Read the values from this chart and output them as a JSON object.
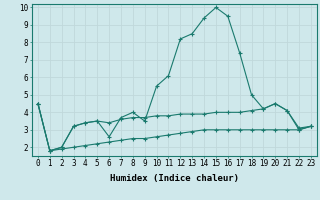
{
  "xlabel": "Humidex (Indice chaleur)",
  "bg_color": "#cfe8eb",
  "grid_color": "#c0d8db",
  "line_color": "#1a7a6e",
  "xlim": [
    -0.5,
    23.5
  ],
  "ylim": [
    1.5,
    10.2
  ],
  "yticks": [
    2,
    3,
    4,
    5,
    6,
    7,
    8,
    9,
    10
  ],
  "xticks": [
    0,
    1,
    2,
    3,
    4,
    5,
    6,
    7,
    8,
    9,
    10,
    11,
    12,
    13,
    14,
    15,
    16,
    17,
    18,
    19,
    20,
    21,
    22,
    23
  ],
  "series1_x": [
    0,
    1,
    2,
    3,
    4,
    5,
    6,
    7,
    8,
    9,
    10,
    11,
    12,
    13,
    14,
    15,
    16,
    17,
    18,
    19,
    20,
    21,
    22,
    23
  ],
  "series1_y": [
    4.5,
    1.8,
    2.0,
    3.2,
    3.4,
    3.5,
    2.6,
    3.7,
    4.0,
    3.5,
    5.5,
    6.1,
    8.2,
    8.5,
    9.4,
    10.0,
    9.5,
    7.4,
    5.0,
    4.2,
    4.5,
    4.1,
    3.0,
    3.2
  ],
  "series2_x": [
    0,
    1,
    2,
    3,
    4,
    5,
    6,
    7,
    8,
    9,
    10,
    11,
    12,
    13,
    14,
    15,
    16,
    17,
    18,
    19,
    20,
    21,
    22,
    23
  ],
  "series2_y": [
    4.5,
    1.8,
    2.0,
    3.2,
    3.4,
    3.5,
    3.4,
    3.6,
    3.7,
    3.7,
    3.8,
    3.8,
    3.9,
    3.9,
    3.9,
    4.0,
    4.0,
    4.0,
    4.1,
    4.2,
    4.5,
    4.1,
    3.1,
    3.2
  ],
  "series3_x": [
    0,
    1,
    2,
    3,
    4,
    5,
    6,
    7,
    8,
    9,
    10,
    11,
    12,
    13,
    14,
    15,
    16,
    17,
    18,
    19,
    20,
    21,
    22,
    23
  ],
  "series3_y": [
    4.5,
    1.8,
    1.9,
    2.0,
    2.1,
    2.2,
    2.3,
    2.4,
    2.5,
    2.5,
    2.6,
    2.7,
    2.8,
    2.9,
    3.0,
    3.0,
    3.0,
    3.0,
    3.0,
    3.0,
    3.0,
    3.0,
    3.0,
    3.2
  ],
  "xlabel_fontsize": 6.5,
  "tick_fontsize": 5.5
}
